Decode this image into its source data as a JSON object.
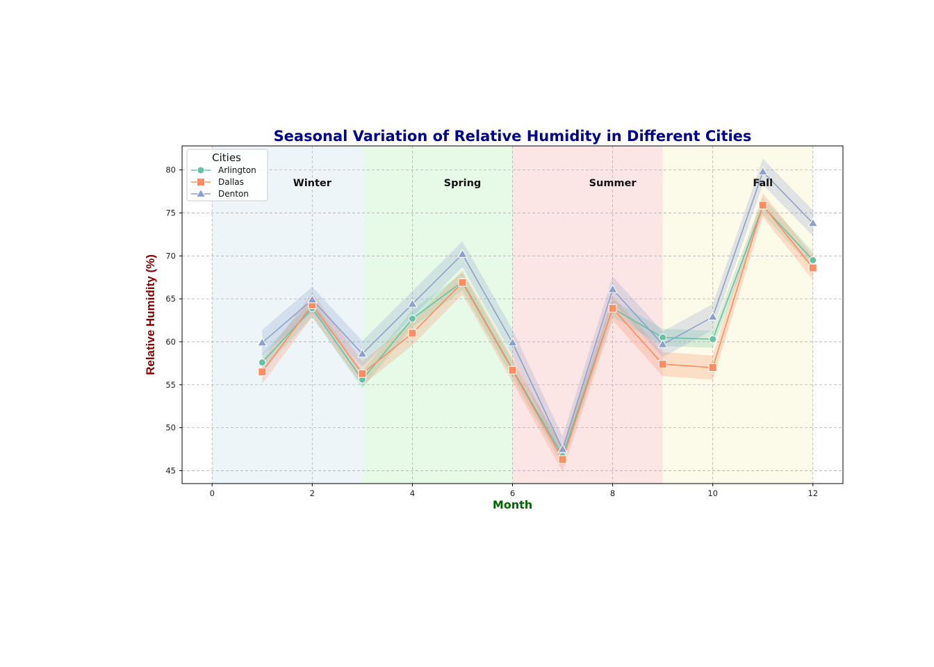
{
  "chart_data": {
    "type": "line",
    "title": "Seasonal Variation of Relative Humidity in Different Cities",
    "xlabel": "Month",
    "ylabel": "Relative Humidity (%)",
    "xlim": [
      -0.6,
      12.6
    ],
    "ylim": [
      43.5,
      82.8
    ],
    "x_ticks": [
      0,
      2,
      4,
      6,
      8,
      10,
      12
    ],
    "y_ticks": [
      45,
      50,
      55,
      60,
      65,
      70,
      75,
      80
    ],
    "grid": true,
    "legend": {
      "title": "Cities",
      "placement": "top-left"
    },
    "colors": {
      "title": "#00008b",
      "xlabel": "#006400",
      "ylabel": "#8b0000"
    },
    "x": [
      1,
      2,
      3,
      4,
      5,
      6,
      7,
      8,
      9,
      10,
      11,
      12
    ],
    "series": [
      {
        "name": "Arlington",
        "marker": "circle",
        "color": "#66c2a5",
        "values": [
          57.6,
          63.9,
          55.6,
          62.7,
          67.0,
          56.8,
          46.7,
          63.9,
          60.5,
          60.3,
          75.8,
          69.5
        ],
        "band": 1.0
      },
      {
        "name": "Dallas",
        "marker": "square",
        "color": "#fc8d62",
        "values": [
          56.5,
          64.3,
          56.3,
          61.0,
          66.9,
          56.7,
          46.3,
          63.9,
          57.4,
          57.0,
          75.9,
          68.6
        ],
        "band": 1.4
      },
      {
        "name": "Denton",
        "marker": "triangle",
        "color": "#8da0cb",
        "values": [
          59.9,
          64.9,
          58.6,
          64.4,
          70.2,
          59.9,
          47.5,
          66.1,
          59.7,
          62.9,
          79.8,
          73.8
        ],
        "band": 1.5
      }
    ],
    "seasons": [
      {
        "label": "Winter",
        "start": 0,
        "end": 3,
        "label_x": 2,
        "color": "#d6e9f2"
      },
      {
        "label": "Spring",
        "start": 3,
        "end": 6,
        "label_x": 5,
        "color": "#c9f5c9"
      },
      {
        "label": "Summer",
        "start": 6,
        "end": 9,
        "label_x": 8,
        "color": "#f7c6c6"
      },
      {
        "label": "Fall",
        "start": 9,
        "end": 12,
        "label_x": 11,
        "color": "#f8f3cf"
      }
    ],
    "season_label_y": 78.5
  }
}
